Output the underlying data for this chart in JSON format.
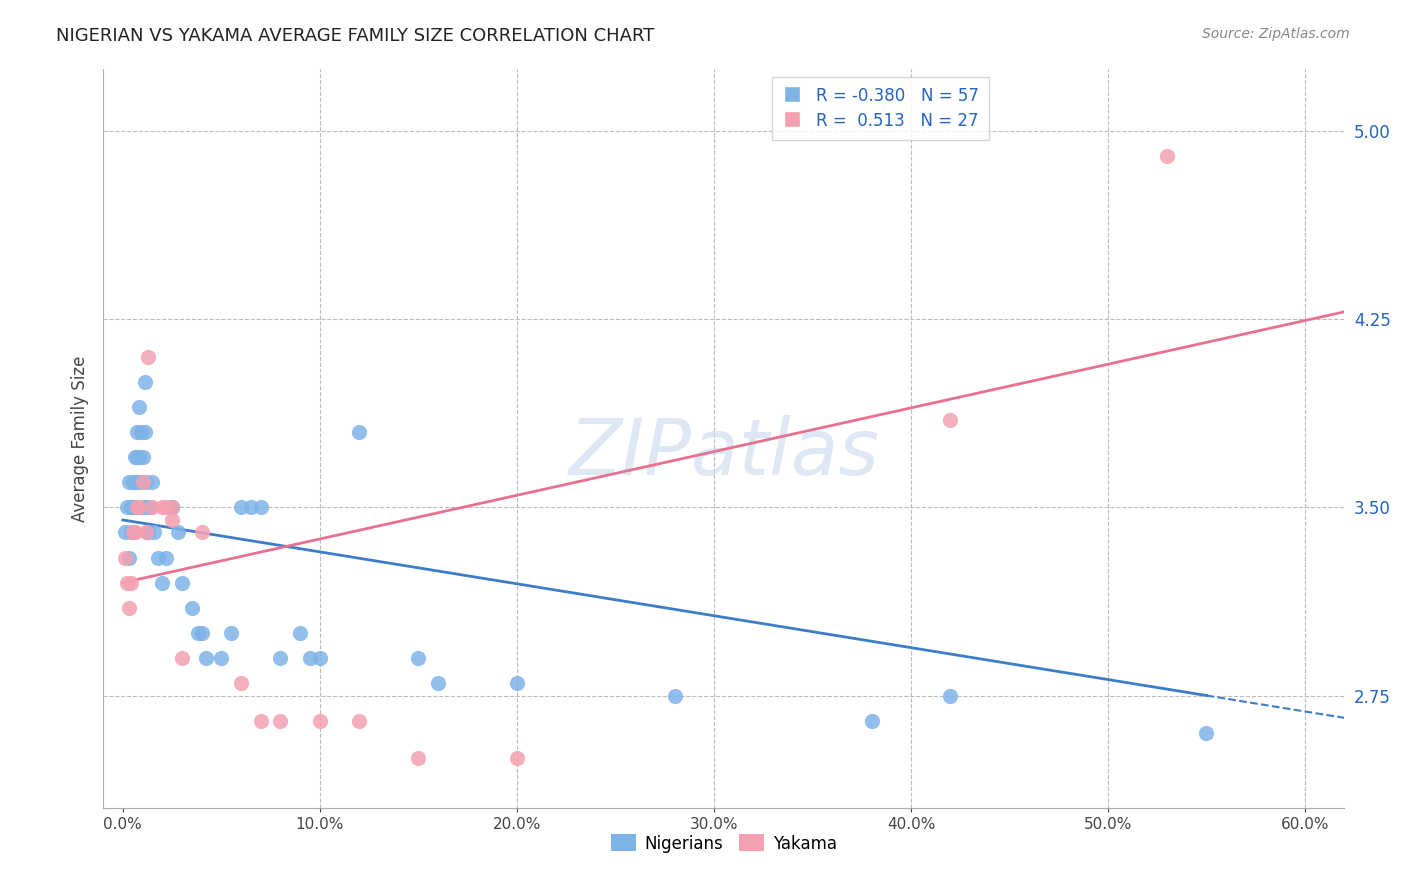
{
  "title": "NIGERIAN VS YAKAMA AVERAGE FAMILY SIZE CORRELATION CHART",
  "source": "Source: ZipAtlas.com",
  "ylabel": "Average Family Size",
  "xlabel_ticks": [
    "0.0%",
    "10.0%",
    "20.0%",
    "30.0%",
    "40.0%",
    "50.0%",
    "60.0%"
  ],
  "xlabel_vals": [
    0.0,
    0.1,
    0.2,
    0.3,
    0.4,
    0.5,
    0.6
  ],
  "ytick_labels": [
    "2.75",
    "3.50",
    "4.25",
    "5.00"
  ],
  "ytick_vals": [
    2.75,
    3.5,
    4.25,
    5.0
  ],
  "ylim": [
    2.3,
    5.25
  ],
  "xlim": [
    -0.01,
    0.62
  ],
  "legend_r_blue": "R = -0.380",
  "legend_n_blue": "N = 57",
  "legend_r_pink": "R =  0.513",
  "legend_n_pink": "N = 27",
  "blue_color": "#7EB3E8",
  "pink_color": "#F4A0B0",
  "blue_line_color": "#3B7DC8",
  "pink_line_color": "#E87090",
  "watermark": "ZIPatlas",
  "nigerian_x": [
    0.001,
    0.002,
    0.003,
    0.003,
    0.004,
    0.004,
    0.005,
    0.005,
    0.005,
    0.006,
    0.006,
    0.006,
    0.007,
    0.007,
    0.007,
    0.008,
    0.008,
    0.009,
    0.009,
    0.01,
    0.01,
    0.011,
    0.011,
    0.012,
    0.012,
    0.013,
    0.014,
    0.015,
    0.016,
    0.018,
    0.02,
    0.022,
    0.025,
    0.025,
    0.028,
    0.03,
    0.035,
    0.038,
    0.04,
    0.042,
    0.05,
    0.055,
    0.06,
    0.065,
    0.07,
    0.08,
    0.09,
    0.095,
    0.1,
    0.12,
    0.15,
    0.16,
    0.2,
    0.28,
    0.38,
    0.42,
    0.55
  ],
  "nigerian_y": [
    3.4,
    3.5,
    3.3,
    3.6,
    3.5,
    3.4,
    3.6,
    3.5,
    3.4,
    3.7,
    3.6,
    3.5,
    3.8,
    3.7,
    3.6,
    3.9,
    3.7,
    3.8,
    3.6,
    3.7,
    3.5,
    4.0,
    3.8,
    3.6,
    3.5,
    3.4,
    3.5,
    3.6,
    3.4,
    3.3,
    3.2,
    3.3,
    3.5,
    3.5,
    3.4,
    3.2,
    3.1,
    3.0,
    3.0,
    2.9,
    2.9,
    3.0,
    3.5,
    3.5,
    3.5,
    2.9,
    3.0,
    2.9,
    2.9,
    3.8,
    2.9,
    2.8,
    2.8,
    2.75,
    2.65,
    2.75,
    2.6
  ],
  "yakama_x": [
    0.001,
    0.002,
    0.003,
    0.004,
    0.005,
    0.006,
    0.007,
    0.008,
    0.01,
    0.012,
    0.013,
    0.015,
    0.02,
    0.022,
    0.025,
    0.025,
    0.03,
    0.04,
    0.06,
    0.07,
    0.08,
    0.1,
    0.12,
    0.15,
    0.2,
    0.42,
    0.53
  ],
  "yakama_y": [
    3.3,
    3.2,
    3.1,
    3.2,
    3.4,
    3.4,
    3.5,
    3.5,
    3.6,
    3.4,
    4.1,
    3.5,
    3.5,
    3.5,
    3.45,
    3.5,
    2.9,
    3.4,
    2.8,
    2.65,
    2.65,
    2.65,
    2.65,
    2.5,
    2.5,
    3.85,
    4.9
  ]
}
